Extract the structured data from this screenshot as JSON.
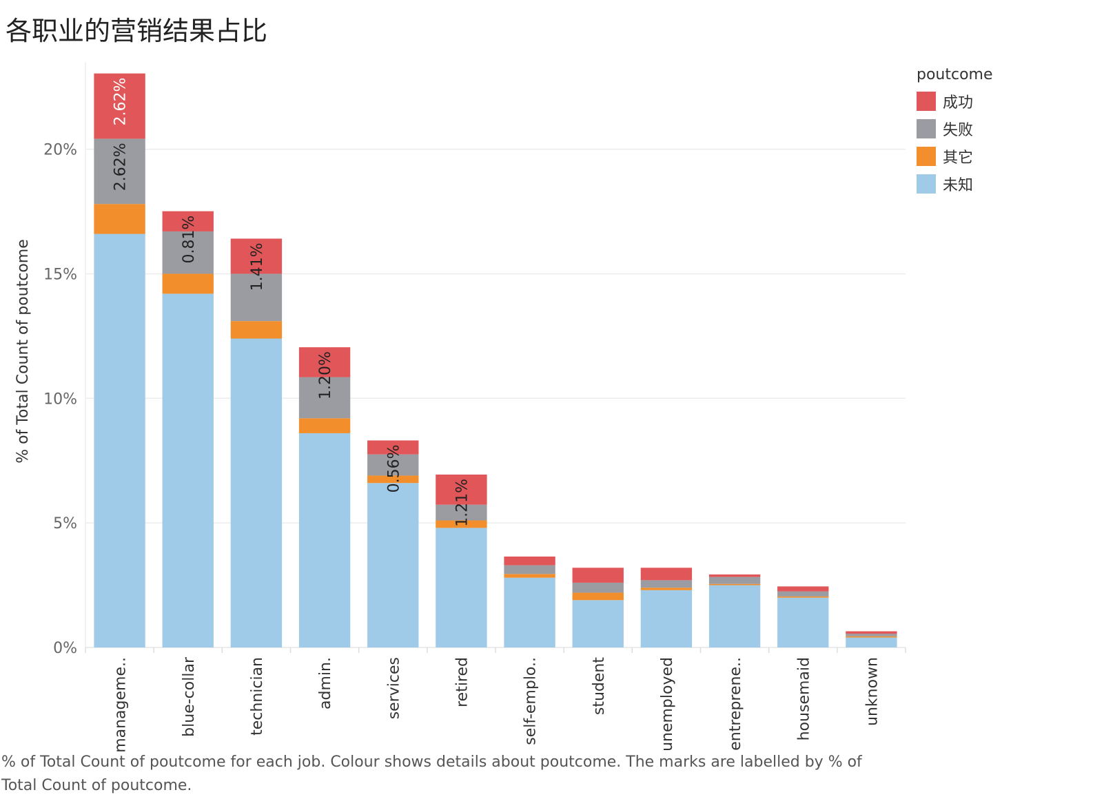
{
  "title": "各职业的营销结果占比",
  "caption": "% of Total Count of poutcome for each job.  Colour shows details about poutcome.  The marks are labelled by % of Total Count of poutcome.",
  "legend": {
    "title": "poutcome",
    "items": [
      {
        "label": "成功",
        "color": "#e15759"
      },
      {
        "label": "失败",
        "color": "#9a9ca1"
      },
      {
        "label": "其它",
        "color": "#f28e2b"
      },
      {
        "label": "未知",
        "color": "#a0cbe8"
      }
    ]
  },
  "chart_data": {
    "type": "bar",
    "stacked": true,
    "ylabel": "% of Total Count of poutcome",
    "ylim": [
      0,
      23.5
    ],
    "yticks": [
      0,
      5,
      10,
      15,
      20
    ],
    "ytick_labels": [
      "0%",
      "5%",
      "10%",
      "15%",
      "20%"
    ],
    "grid": true,
    "legend_position": "top-right",
    "categories": [
      "manageme..",
      "blue-collar",
      "technician",
      "admin.",
      "services",
      "retired",
      "self-emplo..",
      "student",
      "unemployed",
      "entreprene..",
      "housemaid",
      "unknown"
    ],
    "series": [
      {
        "name": "未知",
        "color": "#a0cbe8",
        "values": [
          16.6,
          14.2,
          12.4,
          8.6,
          6.6,
          4.8,
          2.8,
          1.9,
          2.3,
          2.5,
          2.0,
          0.4
        ]
      },
      {
        "name": "其它",
        "color": "#f28e2b",
        "values": [
          1.2,
          0.8,
          0.7,
          0.6,
          0.3,
          0.3,
          0.15,
          0.3,
          0.1,
          0.05,
          0.05,
          0.05
        ]
      },
      {
        "name": "失败",
        "color": "#9a9ca1",
        "values": [
          2.62,
          1.7,
          1.9,
          1.65,
          0.85,
          0.63,
          0.35,
          0.4,
          0.3,
          0.28,
          0.2,
          0.1
        ]
      },
      {
        "name": "成功",
        "color": "#e15759",
        "values": [
          2.62,
          0.81,
          1.41,
          1.2,
          0.56,
          1.21,
          0.35,
          0.6,
          0.5,
          0.1,
          0.2,
          0.1
        ]
      }
    ],
    "data_labels": [
      {
        "category": 0,
        "series": "成功",
        "text": "2.62%"
      },
      {
        "category": 0,
        "series": "失败",
        "text": "2.62%"
      },
      {
        "category": 1,
        "series": "成功",
        "text": "0.81%"
      },
      {
        "category": 2,
        "series": "成功",
        "text": "1.41%"
      },
      {
        "category": 3,
        "series": "成功",
        "text": "1.20%"
      },
      {
        "category": 4,
        "series": "成功",
        "text": "0.56%"
      },
      {
        "category": 5,
        "series": "成功",
        "text": "1.21%"
      }
    ]
  }
}
